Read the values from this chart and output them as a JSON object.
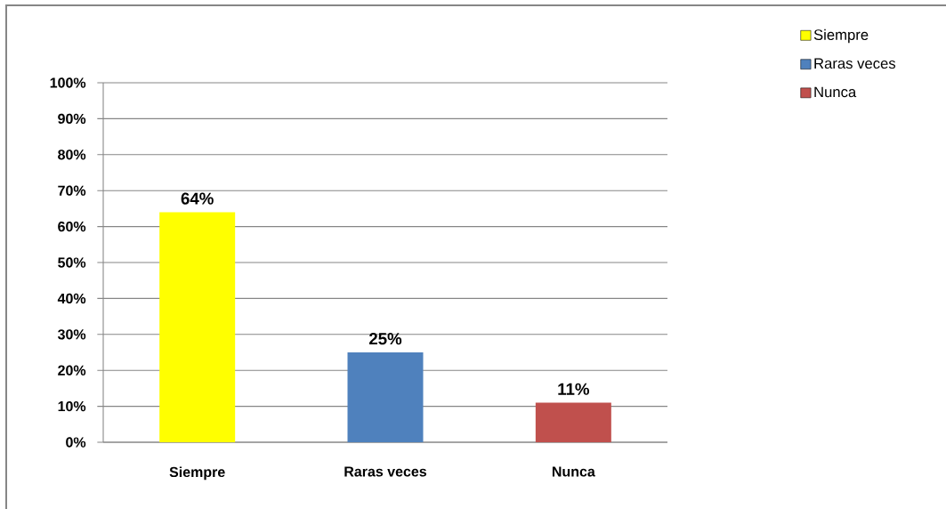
{
  "chart_data": {
    "type": "bar",
    "categories": [
      "Siempre",
      "Raras veces",
      "Nunca"
    ],
    "series": [
      {
        "name": "Siempre",
        "color": "#ffff00",
        "values": [
          64,
          null,
          null
        ],
        "value_labels": [
          "64%",
          null,
          null
        ]
      },
      {
        "name": "Raras veces",
        "color": "#4f81bd",
        "values": [
          null,
          25,
          null
        ],
        "value_labels": [
          null,
          "25%",
          null
        ]
      },
      {
        "name": "Nunca",
        "color": "#c0504d",
        "values": [
          null,
          null,
          11
        ],
        "value_labels": [
          null,
          null,
          "11%"
        ]
      }
    ],
    "ylim": [
      0,
      100
    ],
    "yticks": [
      {
        "value": 0,
        "label": "0%"
      },
      {
        "value": 10,
        "label": "10%"
      },
      {
        "value": 20,
        "label": "20%"
      },
      {
        "value": 30,
        "label": "30%"
      },
      {
        "value": 40,
        "label": "40%"
      },
      {
        "value": 50,
        "label": "50%"
      },
      {
        "value": 60,
        "label": "60%"
      },
      {
        "value": 70,
        "label": "70%"
      },
      {
        "value": 80,
        "label": "80%"
      },
      {
        "value": 90,
        "label": "90%"
      },
      {
        "value": 100,
        "label": "100%"
      }
    ],
    "grid": "y",
    "legend": "top right"
  }
}
